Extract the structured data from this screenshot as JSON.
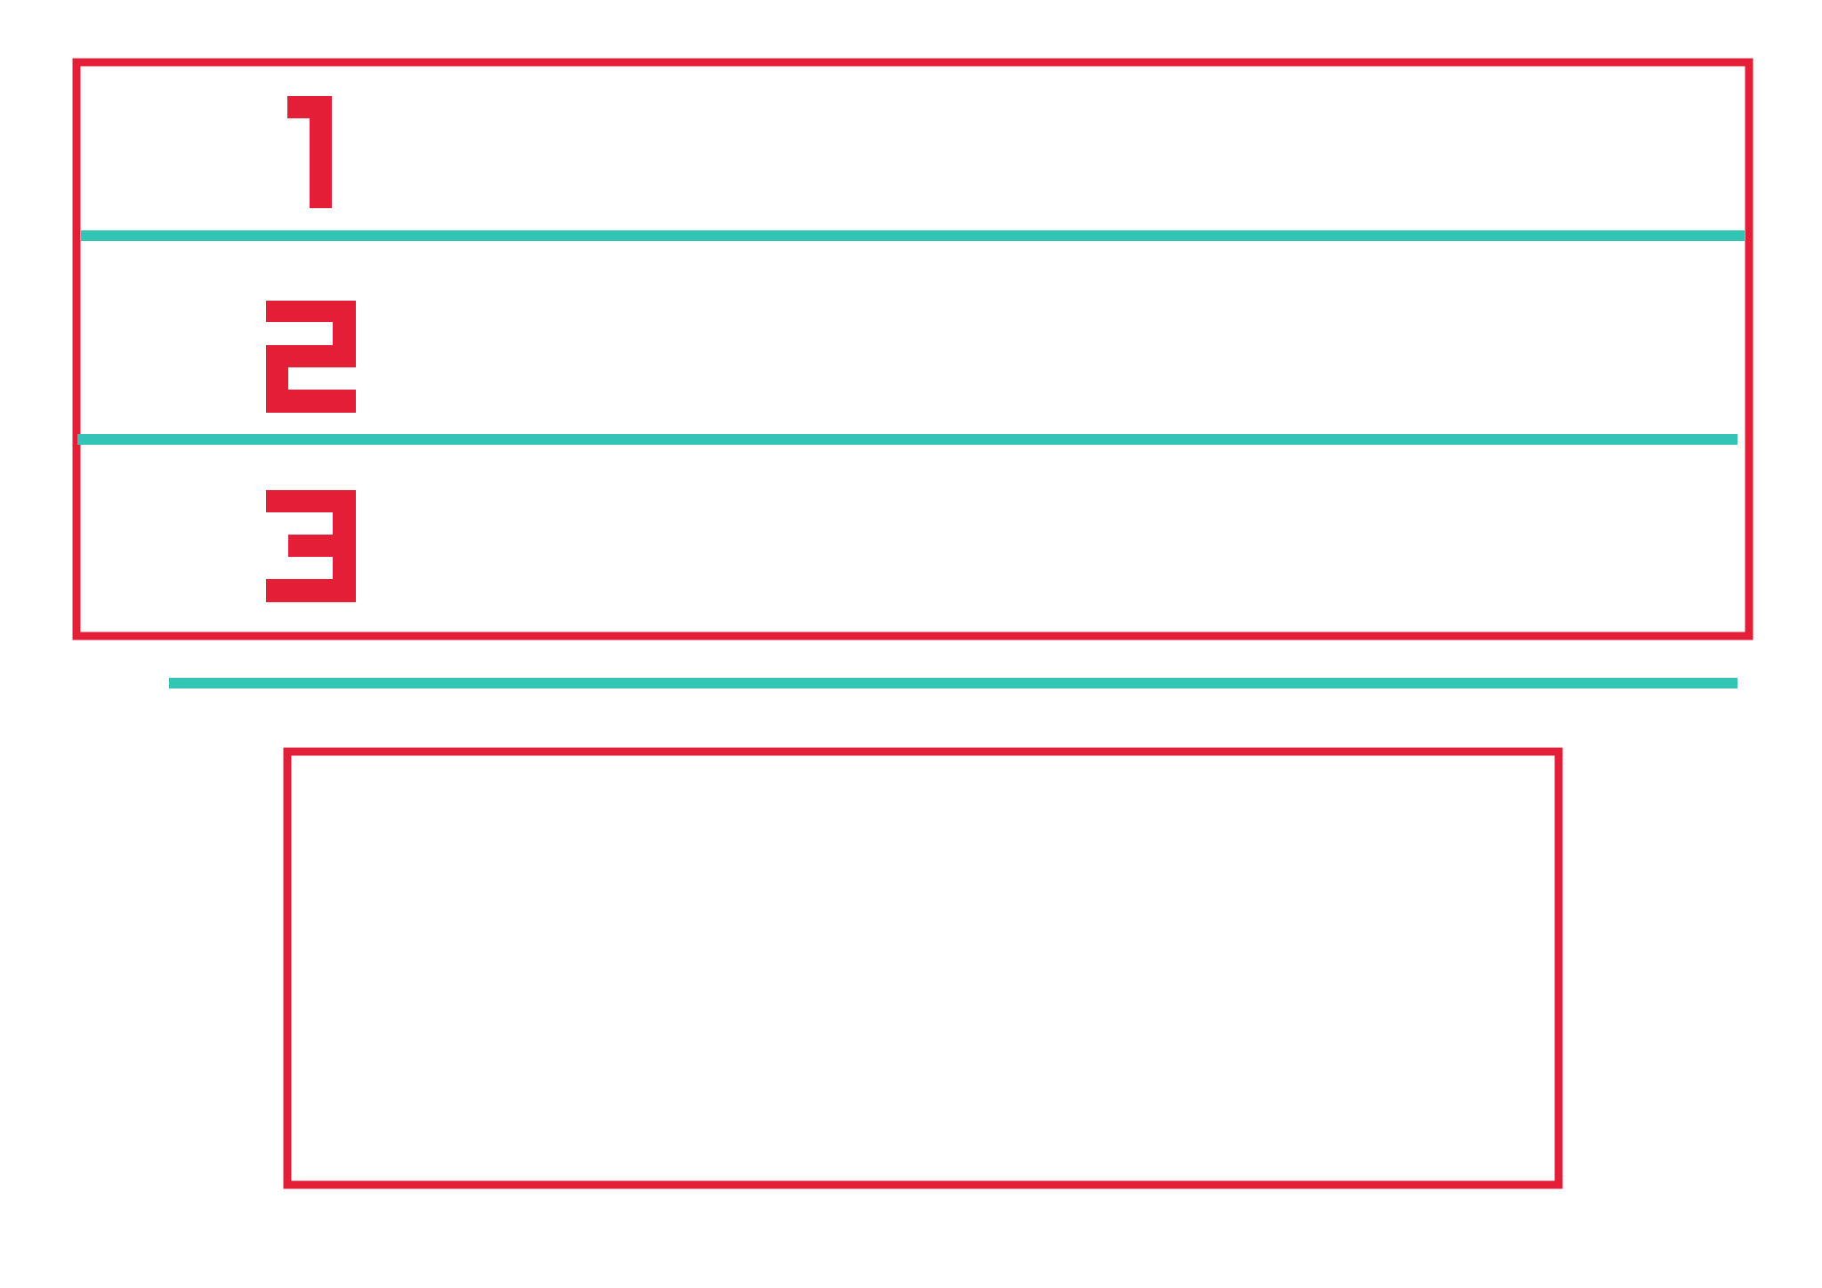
{
  "colors": {
    "outline": "#e41e37",
    "divider": "#33c4b5",
    "background": "#ffffff"
  },
  "rows": [
    {
      "number": "1"
    },
    {
      "number": "2"
    },
    {
      "number": "3"
    }
  ]
}
